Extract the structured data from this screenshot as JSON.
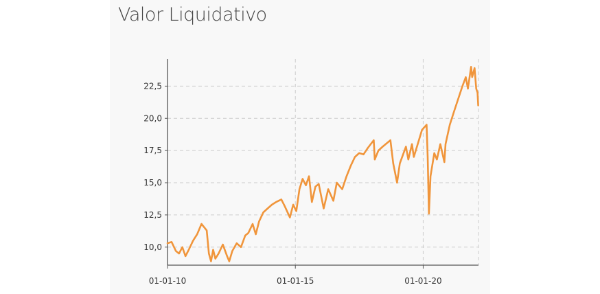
{
  "page": {
    "title": "Valor Liquidativo"
  },
  "chart_data": {
    "type": "line",
    "title": "Valor Liquidativo",
    "xlabel": "",
    "ylabel": "",
    "xlim": [
      "2010-01-01",
      "2022-03-01"
    ],
    "ylim": [
      8.6,
      24.6
    ],
    "x_ticks": [
      {
        "x": "2010-01-01",
        "label": "01-01-10"
      },
      {
        "x": "2015-01-01",
        "label": "01-01-15"
      },
      {
        "x": "2020-01-01",
        "label": "01-01-20"
      }
    ],
    "y_ticks": [
      {
        "y": 10.0,
        "label": "10,0"
      },
      {
        "y": 12.5,
        "label": "12,5"
      },
      {
        "y": 15.0,
        "label": "15,0"
      },
      {
        "y": 17.5,
        "label": "17,5"
      },
      {
        "y": 20.0,
        "label": "20,0"
      },
      {
        "y": 22.5,
        "label": "22,5"
      }
    ],
    "grid": true,
    "colors": {
      "line": "#f0953b",
      "grid": "#cccccc",
      "axis": "#555555"
    },
    "series": [
      {
        "points": [
          [
            "2010-01-01",
            10.3
          ],
          [
            "2010-03-01",
            10.4
          ],
          [
            "2010-05-01",
            9.7
          ],
          [
            "2010-06-15",
            9.5
          ],
          [
            "2010-08-01",
            10.0
          ],
          [
            "2010-09-15",
            9.3
          ],
          [
            "2010-11-01",
            9.8
          ],
          [
            "2011-01-01",
            10.5
          ],
          [
            "2011-03-01",
            11.0
          ],
          [
            "2011-05-01",
            11.8
          ],
          [
            "2011-06-15",
            11.5
          ],
          [
            "2011-07-15",
            11.3
          ],
          [
            "2011-08-15",
            9.5
          ],
          [
            "2011-09-15",
            8.9
          ],
          [
            "2011-10-15",
            9.8
          ],
          [
            "2011-11-15",
            9.1
          ],
          [
            "2012-01-01",
            9.5
          ],
          [
            "2012-03-01",
            10.2
          ],
          [
            "2012-05-01",
            9.3
          ],
          [
            "2012-06-01",
            8.9
          ],
          [
            "2012-07-15",
            9.7
          ],
          [
            "2012-09-15",
            10.3
          ],
          [
            "2012-11-15",
            10.0
          ],
          [
            "2013-01-15",
            10.9
          ],
          [
            "2013-03-01",
            11.1
          ],
          [
            "2013-05-01",
            11.8
          ],
          [
            "2013-06-15",
            11.0
          ],
          [
            "2013-08-01",
            12.0
          ],
          [
            "2013-10-01",
            12.7
          ],
          [
            "2013-12-01",
            13.0
          ],
          [
            "2014-02-01",
            13.3
          ],
          [
            "2014-04-01",
            13.5
          ],
          [
            "2014-06-15",
            13.7
          ],
          [
            "2014-08-01",
            13.2
          ],
          [
            "2014-10-15",
            12.3
          ],
          [
            "2014-12-01",
            13.3
          ],
          [
            "2015-01-15",
            12.8
          ],
          [
            "2015-03-01",
            14.5
          ],
          [
            "2015-04-15",
            15.3
          ],
          [
            "2015-06-01",
            14.8
          ],
          [
            "2015-07-15",
            15.5
          ],
          [
            "2015-08-25",
            13.5
          ],
          [
            "2015-10-15",
            14.7
          ],
          [
            "2015-12-01",
            14.9
          ],
          [
            "2016-02-10",
            13.0
          ],
          [
            "2016-04-15",
            14.5
          ],
          [
            "2016-06-27",
            13.6
          ],
          [
            "2016-08-15",
            15.0
          ],
          [
            "2016-11-01",
            14.5
          ],
          [
            "2017-01-01",
            15.5
          ],
          [
            "2017-03-01",
            16.3
          ],
          [
            "2017-05-01",
            17.0
          ],
          [
            "2017-07-01",
            17.3
          ],
          [
            "2017-09-01",
            17.2
          ],
          [
            "2017-11-01",
            17.7
          ],
          [
            "2018-01-25",
            18.3
          ],
          [
            "2018-02-08",
            16.8
          ],
          [
            "2018-04-01",
            17.5
          ],
          [
            "2018-06-01",
            17.8
          ],
          [
            "2018-09-20",
            18.3
          ],
          [
            "2018-10-30",
            16.5
          ],
          [
            "2018-12-24",
            15.0
          ],
          [
            "2019-02-01",
            16.5
          ],
          [
            "2019-04-30",
            17.8
          ],
          [
            "2019-06-03",
            16.8
          ],
          [
            "2019-07-25",
            18.0
          ],
          [
            "2019-08-20",
            17.0
          ],
          [
            "2019-10-15",
            18.0
          ],
          [
            "2019-12-15",
            19.1
          ],
          [
            "2020-02-19",
            19.5
          ],
          [
            "2020-03-05",
            17.0
          ],
          [
            "2020-03-23",
            12.6
          ],
          [
            "2020-04-15",
            15.5
          ],
          [
            "2020-06-08",
            17.3
          ],
          [
            "2020-07-15",
            16.8
          ],
          [
            "2020-09-02",
            18.0
          ],
          [
            "2020-10-30",
            16.6
          ],
          [
            "2020-11-15",
            18.0
          ],
          [
            "2021-01-15",
            19.5
          ],
          [
            "2021-03-15",
            20.5
          ],
          [
            "2021-05-15",
            21.5
          ],
          [
            "2021-07-15",
            22.5
          ],
          [
            "2021-09-01",
            23.2
          ],
          [
            "2021-10-01",
            22.3
          ],
          [
            "2021-11-15",
            24.0
          ],
          [
            "2021-12-01",
            23.2
          ],
          [
            "2022-01-04",
            23.9
          ],
          [
            "2022-01-28",
            22.3
          ],
          [
            "2022-02-15",
            22.0
          ],
          [
            "2022-02-25",
            21.0
          ]
        ]
      }
    ]
  }
}
